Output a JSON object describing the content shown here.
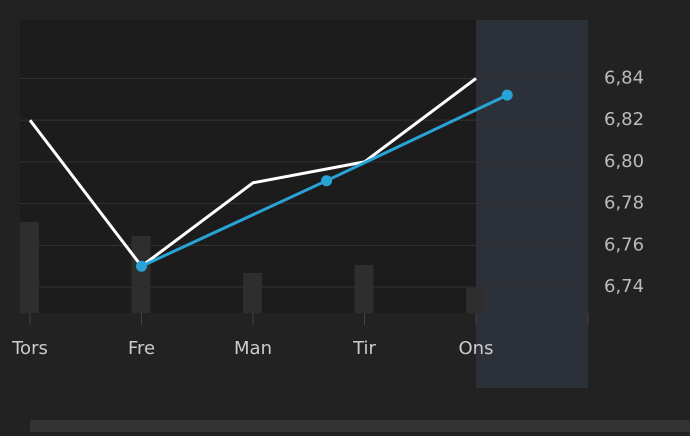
{
  "chart_data": {
    "type": "line",
    "categories": [
      "Tors",
      "Fre",
      "Man",
      "Tir",
      "Ons"
    ],
    "series": [
      {
        "color": "#ffffff",
        "values": [
          6.82,
          6.75,
          6.79,
          6.8,
          6.84
        ]
      },
      {
        "color": "#29a3d6",
        "x": [
          1,
          2.66,
          4.28
        ],
        "values": [
          6.75,
          6.791,
          6.832
        ],
        "markers": true
      }
    ],
    "volume": {
      "color": "#2e2e2e",
      "values": [
        91,
        77,
        40,
        48,
        25
      ],
      "ylim": [
        0,
        293
      ]
    },
    "ylim": [
      6.7276,
      6.868
    ],
    "yticks": [
      {
        "value": 6.74,
        "label": "6,74"
      },
      {
        "value": 6.76,
        "label": "6,76"
      },
      {
        "value": 6.78,
        "label": "6,78"
      },
      {
        "value": 6.8,
        "label": "6,80"
      },
      {
        "value": 6.82,
        "label": "6,82"
      },
      {
        "value": 6.84,
        "label": "6,84"
      }
    ],
    "grid": true
  }
}
